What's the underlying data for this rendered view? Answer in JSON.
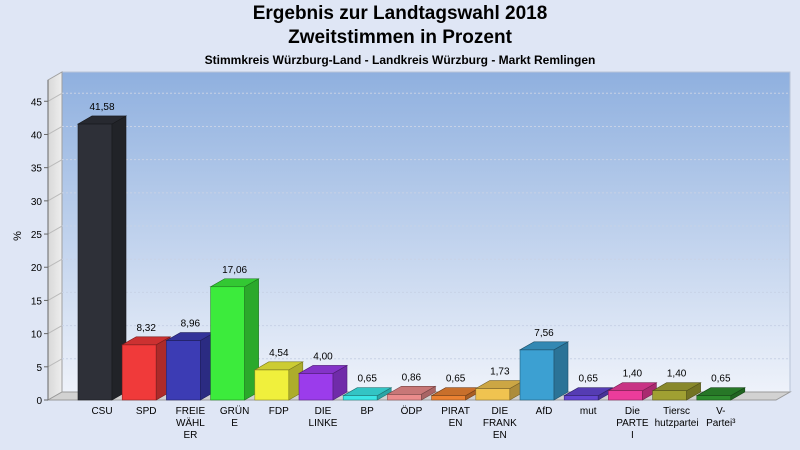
{
  "header": {
    "title_line1": "Ergebnis zur Landtagswahl 2018",
    "title_line2": "Zweitstimmen in Prozent",
    "subtitle": "Stimmkreis Würzburg-Land - Landkreis Würzburg - Markt Remlingen"
  },
  "chart_data": {
    "type": "bar",
    "ylabel": "%",
    "ylim": [
      0,
      47
    ],
    "yticks": [
      0,
      5,
      10,
      15,
      20,
      25,
      30,
      35,
      40,
      45
    ],
    "grid": true,
    "categories": [
      [
        "CSU"
      ],
      [
        "SPD"
      ],
      [
        "FREIE",
        "WÄHL",
        "ER"
      ],
      [
        "GRÜN",
        "E"
      ],
      [
        "FDP"
      ],
      [
        "DIE",
        "LINKE"
      ],
      [
        "BP"
      ],
      [
        "ÖDP"
      ],
      [
        "PIRAT",
        "EN"
      ],
      [
        "DIE",
        "FRANK",
        "EN"
      ],
      [
        "AfD"
      ],
      [
        "mut"
      ],
      [
        "Die",
        "PARTE",
        "I"
      ],
      [
        "Tiersc",
        "hutzpartei"
      ],
      [
        "V-",
        "Partei³"
      ]
    ],
    "values": [
      41.58,
      8.32,
      8.96,
      17.06,
      4.54,
      4.0,
      0.65,
      0.86,
      0.65,
      1.73,
      7.56,
      0.65,
      1.4,
      1.4,
      0.65
    ],
    "value_labels": [
      "41,58",
      "8,32",
      "8,96",
      "17,06",
      "4,54",
      "4,00",
      "0,65",
      "0,86",
      "0,65",
      "1,73",
      "7,56",
      "0,65",
      "1,40",
      "1,40",
      "0,65"
    ],
    "colors": [
      "#2e3038",
      "#f03a3a",
      "#3c3cb4",
      "#3ceb3c",
      "#f0f03c",
      "#9b3ceb",
      "#3ce6e6",
      "#eb8c8c",
      "#eb8232",
      "#f0c350",
      "#3ca0d2",
      "#6446d2",
      "#eb3c9b",
      "#a0a032",
      "#2e8c2e"
    ]
  }
}
